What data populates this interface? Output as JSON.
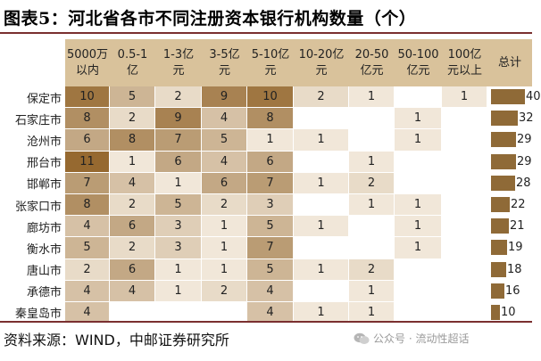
{
  "title": "图表5：河北省各市不同注册资本银行机构数量（个）",
  "columns": [
    [
      "5000万",
      "以内"
    ],
    [
      "0.5-1",
      "亿"
    ],
    [
      "1-3亿",
      "元"
    ],
    [
      "3-5亿",
      "元"
    ],
    [
      "5-10亿",
      "元"
    ],
    [
      "10-20亿",
      "元"
    ],
    [
      "20-50",
      "亿元"
    ],
    [
      "50-100",
      "亿元"
    ],
    [
      "100亿",
      "元以上"
    ],
    [
      "总计",
      ""
    ]
  ],
  "rows": [
    {
      "city": "保定市",
      "values": [
        "10",
        "5",
        "2",
        "9",
        "10",
        "2",
        "1",
        "",
        "1"
      ],
      "total": 40
    },
    {
      "city": "石家庄市",
      "values": [
        "8",
        "2",
        "9",
        "4",
        "8",
        "",
        "",
        "1",
        ""
      ],
      "total": 32
    },
    {
      "city": "沧州市",
      "values": [
        "6",
        "8",
        "7",
        "5",
        "1",
        "1",
        "",
        "1",
        ""
      ],
      "total": 29
    },
    {
      "city": "邢台市",
      "values": [
        "11",
        "1",
        "6",
        "4",
        "6",
        "",
        "1",
        "",
        ""
      ],
      "total": 29
    },
    {
      "city": "邯郸市",
      "values": [
        "7",
        "4",
        "1",
        "6",
        "7",
        "1",
        "2",
        "",
        ""
      ],
      "total": 28
    },
    {
      "city": "张家口市",
      "values": [
        "8",
        "2",
        "5",
        "2",
        "3",
        "",
        "1",
        "1",
        ""
      ],
      "total": 22
    },
    {
      "city": "廊坊市",
      "values": [
        "4",
        "6",
        "3",
        "1",
        "5",
        "1",
        "",
        "1",
        ""
      ],
      "total": 21
    },
    {
      "city": "衡水市",
      "values": [
        "5",
        "2",
        "3",
        "1",
        "7",
        "",
        "",
        "1",
        ""
      ],
      "total": 19
    },
    {
      "city": "唐山市",
      "values": [
        "2",
        "6",
        "1",
        "1",
        "5",
        "1",
        "2",
        "",
        ""
      ],
      "total": 18
    },
    {
      "city": "承德市",
      "values": [
        "4",
        "4",
        "1",
        "2",
        "4",
        "",
        "1",
        "",
        ""
      ],
      "total": 16
    },
    {
      "city": "秦皇岛市",
      "values": [
        "4",
        "",
        "",
        "",
        "4",
        "1",
        "1",
        "",
        ""
      ],
      "total": 10
    }
  ],
  "source": "资料来源：WIND，中邮证券研究所",
  "watermark": "公众号 · 流动性超话",
  "watermark_icon": "wechat-icon",
  "colors": {
    "header_bg": "#d9c29b",
    "bar": "#8f6a37",
    "rule": "#7a2f2f"
  }
}
